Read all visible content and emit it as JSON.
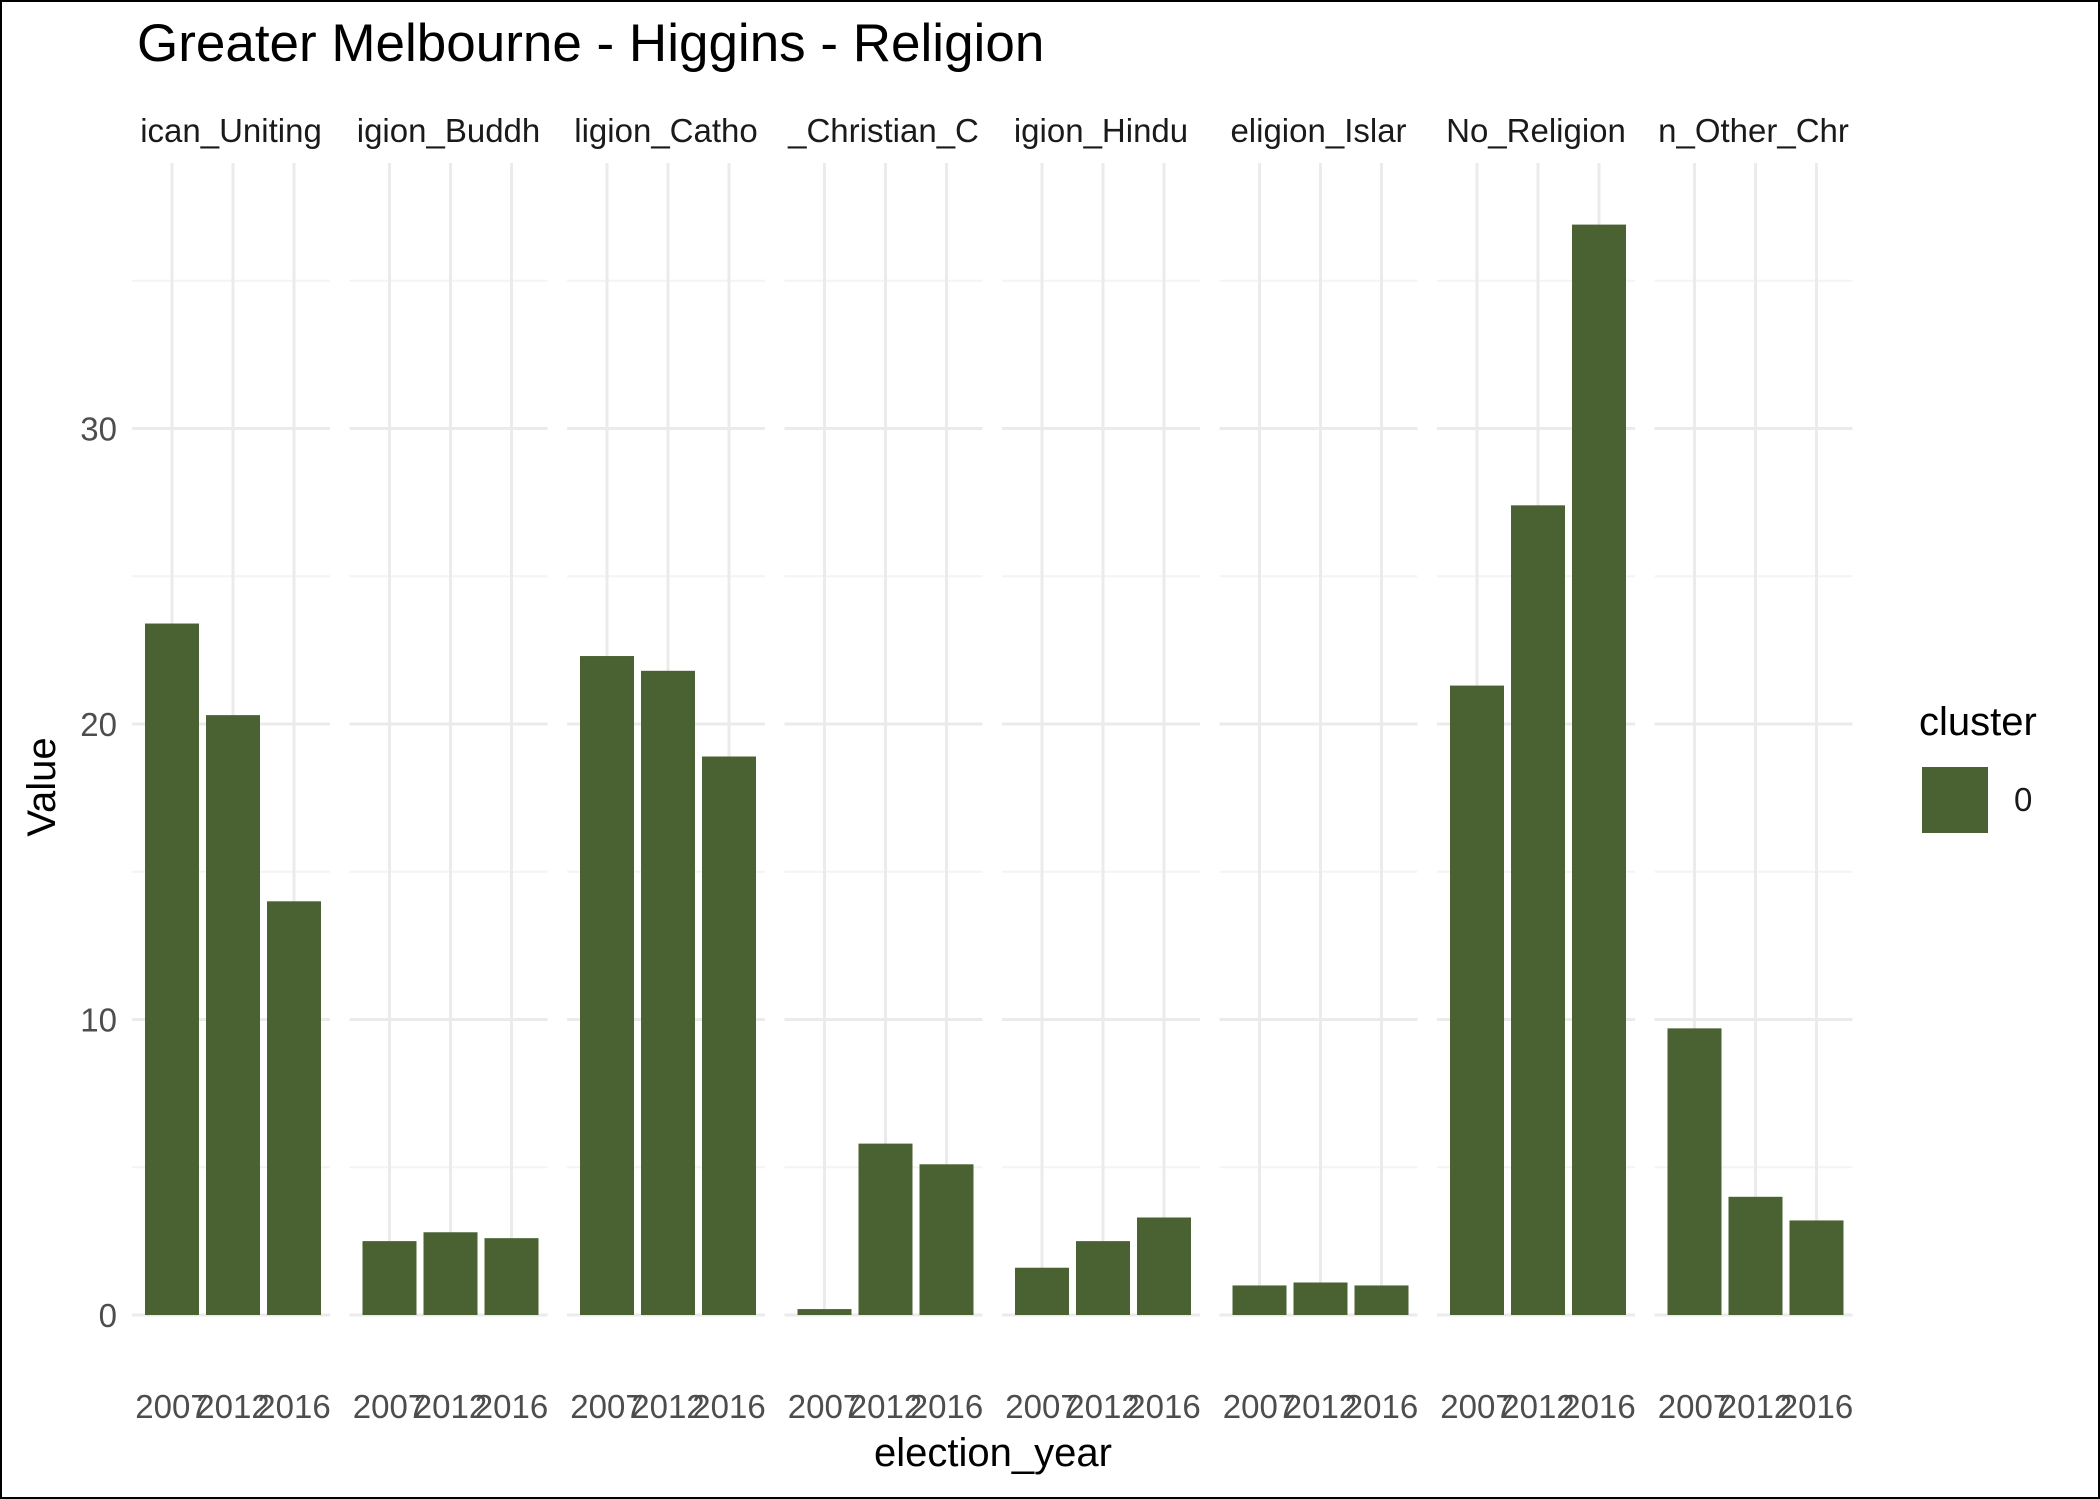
{
  "chart_data": {
    "type": "bar",
    "title": "Greater Melbourne - Higgins - Religion",
    "xlabel": "election_year",
    "ylabel": "Value",
    "ylim": [
      0,
      38
    ],
    "yticks": [
      0,
      10,
      20,
      30
    ],
    "grid": true,
    "legend": {
      "title": "cluster",
      "position": "right",
      "entries": [
        {
          "label": "0",
          "color": "#4a6132"
        }
      ]
    },
    "categories": [
      "2007",
      "2012",
      "2016"
    ],
    "panels": [
      {
        "label": "ican_Uniting",
        "values": [
          23.4,
          20.3,
          14.0
        ]
      },
      {
        "label": "igion_Buddh",
        "values": [
          2.5,
          2.8,
          2.6
        ]
      },
      {
        "label": "ligion_Catho",
        "values": [
          22.3,
          21.8,
          18.9
        ]
      },
      {
        "label": "_Christian_C",
        "values": [
          0.2,
          5.8,
          5.1
        ]
      },
      {
        "label": "igion_Hindu",
        "values": [
          1.6,
          2.5,
          3.3
        ]
      },
      {
        "label": "eligion_Islar",
        "values": [
          1.0,
          1.1,
          1.0
        ]
      },
      {
        "label": "No_Religion",
        "values": [
          21.3,
          27.4,
          36.9
        ]
      },
      {
        "label": "n_Other_Chr",
        "values": [
          9.7,
          4.0,
          3.2
        ]
      }
    ]
  },
  "colors": {
    "bar": "#4a6132",
    "grid_major": "#ebebeb",
    "grid_minor": "#f4f4f4"
  }
}
